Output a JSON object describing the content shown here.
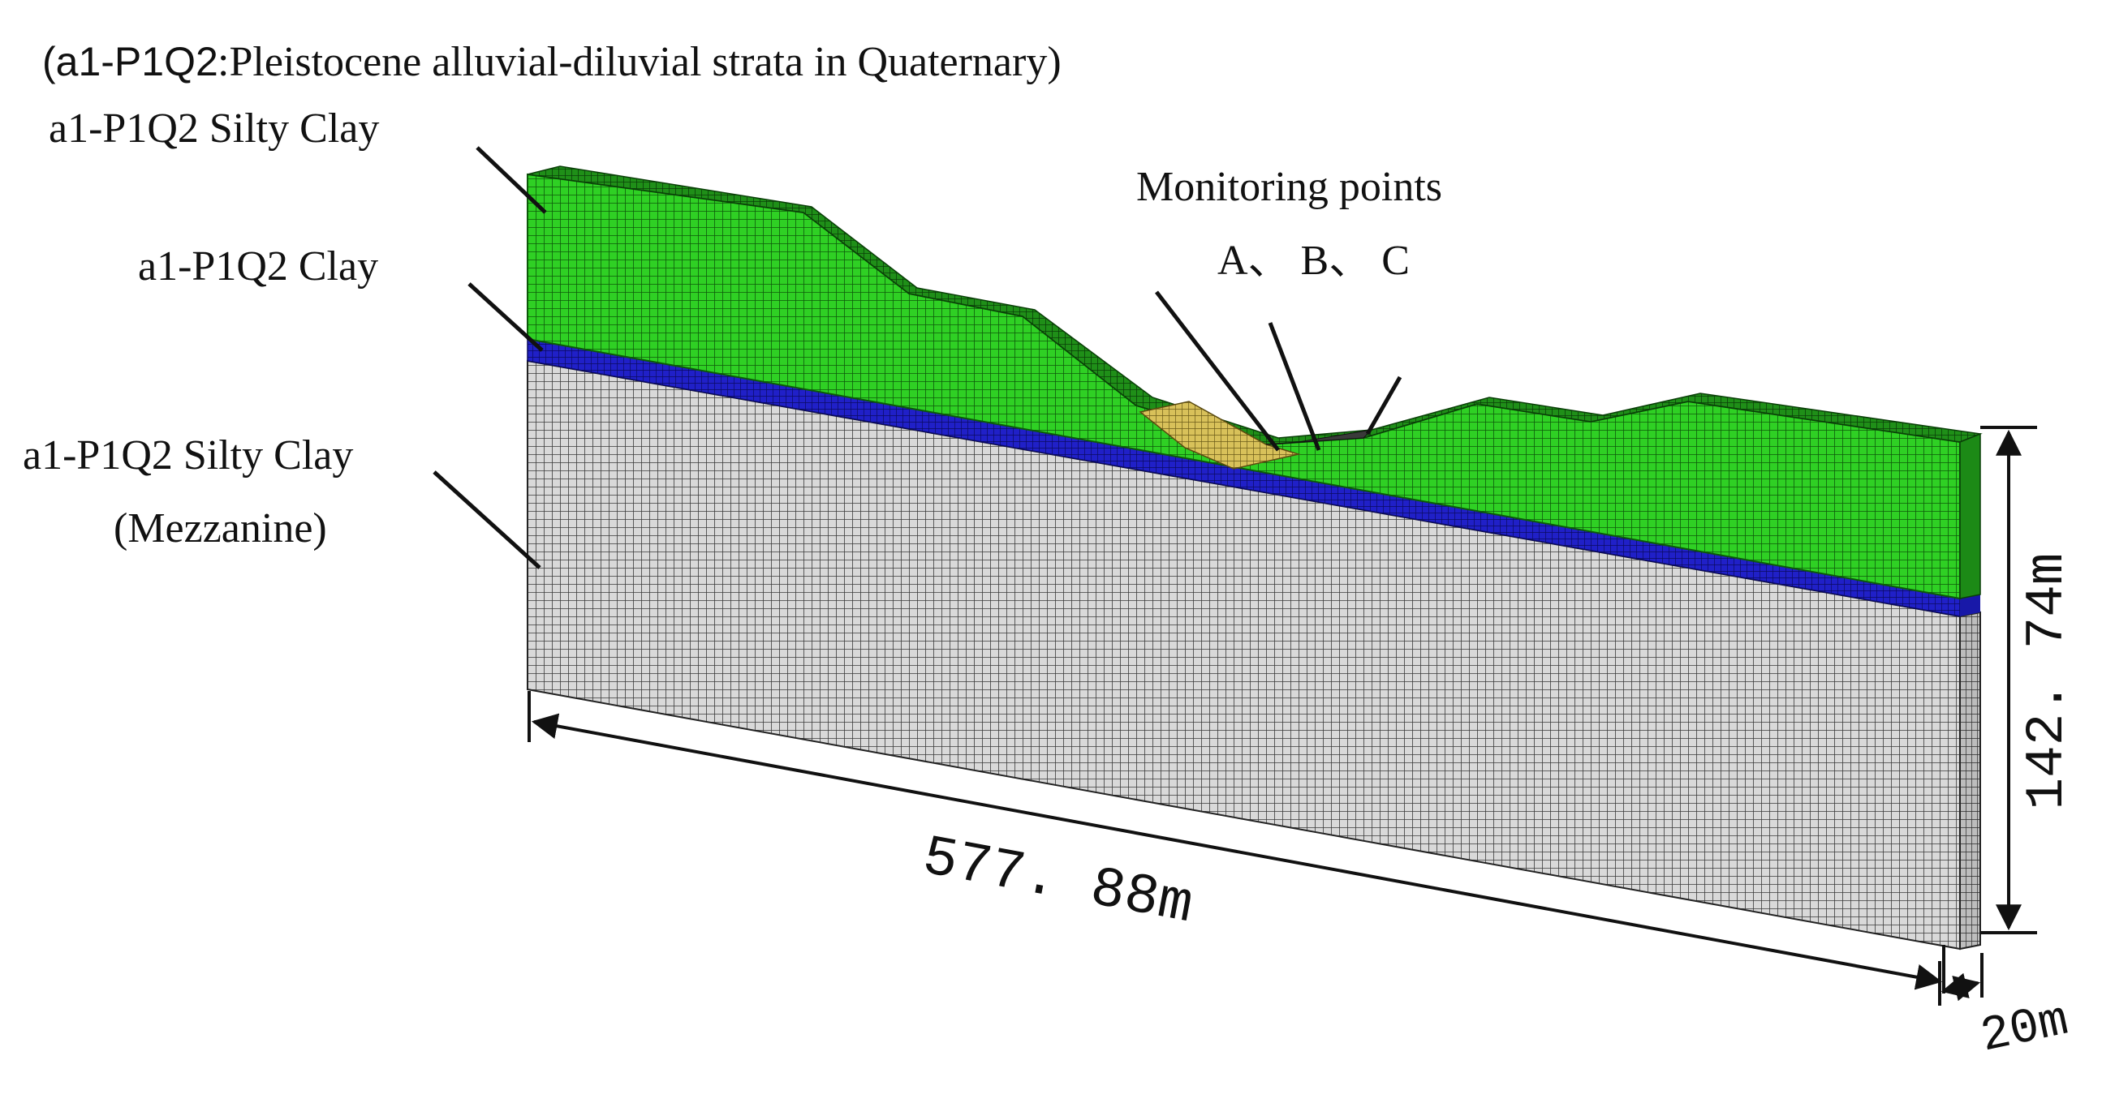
{
  "figure": {
    "title_prefix": "(a1-P1Q2",
    "title_rest": ":Pleistocene alluvial-diluvial strata in Quaternary)",
    "labels": {
      "top_layer": "a1-P1Q2 Silty Clay",
      "clay_layer": "a1-P1Q2  Clay",
      "bottom_layer_line1": "a1-P1Q2 Silty Clay",
      "bottom_layer_line2": "(Mezzanine)",
      "monitoring_title": "Monitoring points",
      "monitoring_ids": "A、 B、 C"
    },
    "dimensions": {
      "length": "577. 88m",
      "height": "142. 74m",
      "width": "20m"
    },
    "colors": {
      "silty_clay_top": "#22b41c",
      "clay": "#1414b4",
      "mezzanine": "#cfcfcf",
      "monitoring_zone": "#d8c15a"
    }
  }
}
